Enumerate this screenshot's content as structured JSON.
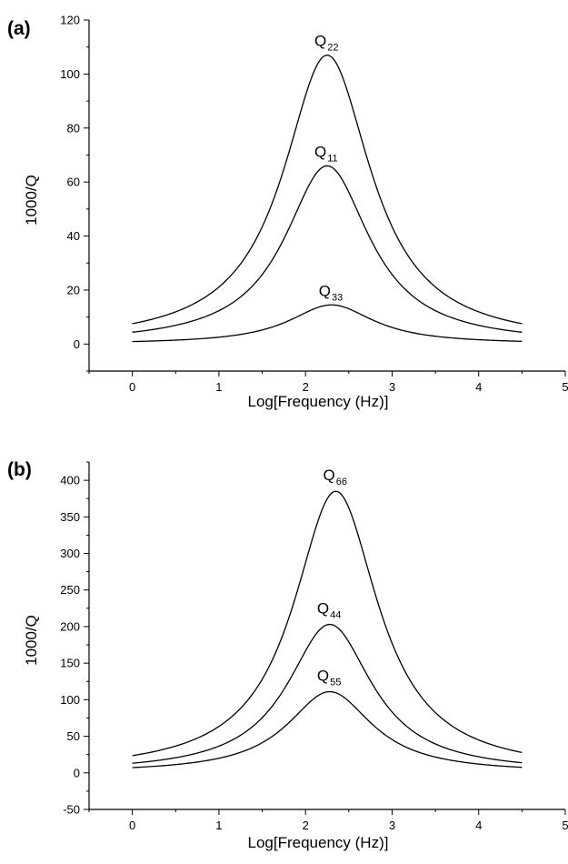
{
  "chart_data": [
    {
      "panel_label": "(a)",
      "type": "line",
      "xlabel": "Log[Frequency (Hz)]",
      "ylabel": "1000/Q",
      "xlim": [
        -0.5,
        5
      ],
      "ylim": [
        -10,
        120
      ],
      "xticks": [
        0,
        1,
        2,
        3,
        4,
        5
      ],
      "xtick_labels": [
        "0",
        "1",
        "2",
        "3",
        "4",
        "5"
      ],
      "yticks": [
        0,
        20,
        40,
        60,
        80,
        100,
        120
      ],
      "ytick_labels": [
        "0",
        "20",
        "40",
        "60",
        "80",
        "100",
        "120"
      ],
      "grid": false,
      "series": [
        {
          "name_main": "Q",
          "name_sub": "22",
          "peak_x": 2.25,
          "peak_y": 107,
          "half_width": 0.62,
          "x_range": [
            0,
            4.5
          ]
        },
        {
          "name_main": "Q",
          "name_sub": "11",
          "peak_x": 2.25,
          "peak_y": 66,
          "half_width": 0.6,
          "x_range": [
            0,
            4.5
          ]
        },
        {
          "name_main": "Q",
          "name_sub": "33",
          "peak_x": 2.3,
          "peak_y": 14.5,
          "half_width": 0.6,
          "x_range": [
            0,
            4.5
          ]
        }
      ]
    },
    {
      "panel_label": "(b)",
      "type": "line",
      "xlabel": "Log[Frequency (Hz)]",
      "ylabel": "1000/Q",
      "xlim": [
        -0.5,
        5
      ],
      "ylim": [
        -50,
        425
      ],
      "xticks": [
        0,
        1,
        2,
        3,
        4,
        5
      ],
      "xtick_labels": [
        "0",
        "1",
        "2",
        "3",
        "4",
        "5"
      ],
      "yticks": [
        -50,
        0,
        50,
        100,
        150,
        200,
        250,
        300,
        350,
        400
      ],
      "ytick_labels": [
        "-50",
        "0",
        "50",
        "100",
        "150",
        "200",
        "250",
        "300",
        "350",
        "400"
      ],
      "grid": false,
      "series": [
        {
          "name_main": "Q",
          "name_sub": "66",
          "peak_x": 2.35,
          "peak_y": 385,
          "half_width": 0.6,
          "x_range": [
            0,
            4.5
          ]
        },
        {
          "name_main": "Q",
          "name_sub": "44",
          "peak_x": 2.28,
          "peak_y": 203,
          "half_width": 0.6,
          "x_range": [
            0,
            4.5
          ]
        },
        {
          "name_main": "Q",
          "name_sub": "55",
          "peak_x": 2.28,
          "peak_y": 111,
          "half_width": 0.6,
          "x_range": [
            0,
            4.5
          ]
        }
      ]
    }
  ]
}
